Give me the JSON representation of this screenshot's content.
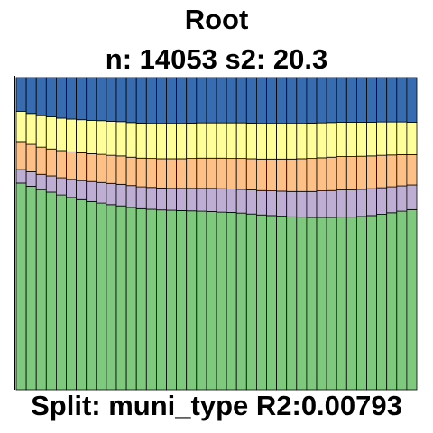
{
  "header": {
    "title": "Root",
    "subtitle": "n: 14053 s2: 20.3"
  },
  "footer": {
    "split_text": "Split: muni_type R2:0.00793"
  },
  "chart_data": {
    "type": "bar",
    "stacked": true,
    "normalized": true,
    "bar_count": 40,
    "ylim": [
      0,
      1
    ],
    "colors": [
      "#7fc97f",
      "#beaed4",
      "#fdc086",
      "#ffff99",
      "#386cb0"
    ],
    "series": [
      {
        "values": [
          0.662,
          0.652,
          0.641,
          0.633,
          0.624,
          0.616,
          0.609,
          0.603,
          0.598,
          0.593,
          0.589,
          0.584,
          0.58,
          0.578,
          0.576,
          0.575,
          0.574,
          0.573,
          0.572,
          0.571,
          0.569,
          0.568,
          0.566,
          0.563,
          0.56,
          0.558,
          0.556,
          0.554,
          0.553,
          0.552,
          0.552,
          0.552,
          0.553,
          0.553,
          0.555,
          0.558,
          0.562,
          0.567,
          0.572,
          0.577
        ]
      },
      {
        "values": [
          0.043,
          0.046,
          0.049,
          0.052,
          0.055,
          0.058,
          0.061,
          0.064,
          0.066,
          0.068,
          0.069,
          0.07,
          0.07,
          0.07,
          0.07,
          0.07,
          0.071,
          0.072,
          0.073,
          0.074,
          0.075,
          0.075,
          0.076,
          0.077,
          0.078,
          0.079,
          0.08,
          0.081,
          0.082,
          0.083,
          0.085,
          0.086,
          0.087,
          0.087,
          0.087,
          0.086,
          0.085,
          0.083,
          0.081,
          0.079
        ]
      },
      {
        "values": [
          0.09,
          0.088,
          0.087,
          0.086,
          0.087,
          0.088,
          0.089,
          0.089,
          0.09,
          0.09,
          0.091,
          0.091,
          0.092,
          0.093,
          0.094,
          0.095,
          0.095,
          0.096,
          0.097,
          0.097,
          0.098,
          0.098,
          0.099,
          0.1,
          0.101,
          0.102,
          0.103,
          0.104,
          0.105,
          0.106,
          0.106,
          0.107,
          0.107,
          0.107,
          0.106,
          0.105,
          0.104,
          0.102,
          0.1,
          0.097
        ]
      },
      {
        "values": [
          0.097,
          0.099,
          0.101,
          0.103,
          0.104,
          0.105,
          0.106,
          0.107,
          0.108,
          0.109,
          0.11,
          0.111,
          0.112,
          0.112,
          0.113,
          0.113,
          0.113,
          0.113,
          0.113,
          0.113,
          0.113,
          0.114,
          0.114,
          0.114,
          0.114,
          0.114,
          0.114,
          0.114,
          0.113,
          0.113,
          0.112,
          0.111,
          0.11,
          0.11,
          0.109,
          0.108,
          0.107,
          0.106,
          0.105,
          0.104
        ]
      },
      {
        "values": [
          0.108,
          0.115,
          0.122,
          0.126,
          0.13,
          0.133,
          0.135,
          0.137,
          0.138,
          0.14,
          0.141,
          0.144,
          0.146,
          0.147,
          0.147,
          0.147,
          0.147,
          0.146,
          0.145,
          0.145,
          0.145,
          0.145,
          0.145,
          0.146,
          0.147,
          0.147,
          0.147,
          0.147,
          0.147,
          0.146,
          0.145,
          0.144,
          0.143,
          0.143,
          0.143,
          0.143,
          0.142,
          0.142,
          0.142,
          0.143
        ]
      }
    ]
  }
}
